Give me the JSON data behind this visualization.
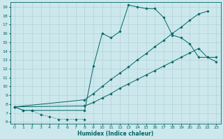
{
  "xlabel": "Humidex (Indice chaleur)",
  "xlim": [
    -0.5,
    23.5
  ],
  "ylim": [
    5.8,
    19.5
  ],
  "xticks": [
    0,
    1,
    2,
    3,
    4,
    5,
    6,
    7,
    8,
    9,
    10,
    11,
    12,
    13,
    14,
    15,
    16,
    17,
    18,
    19,
    20,
    21,
    22,
    23
  ],
  "yticks": [
    6,
    7,
    8,
    9,
    10,
    11,
    12,
    13,
    14,
    15,
    16,
    17,
    18,
    19
  ],
  "bg_color": "#cce8ec",
  "line_color": "#006666",
  "grid_color": "#aacdd2",
  "curve1": {
    "x": [
      0,
      1,
      2,
      3,
      4,
      5,
      6,
      7,
      8
    ],
    "y": [
      7.7,
      7.3,
      7.3,
      6.8,
      6.6,
      6.3,
      6.3,
      6.3,
      6.3
    ]
  },
  "curve2": {
    "x": [
      0,
      1,
      2,
      8,
      9,
      10,
      11,
      12,
      13,
      14,
      15,
      16,
      17,
      18,
      19,
      20,
      21,
      22,
      23
    ],
    "y": [
      7.7,
      7.3,
      7.3,
      7.3,
      12.3,
      16.0,
      15.5,
      16.2,
      19.2,
      19.0,
      18.8,
      18.8,
      17.8,
      15.8,
      15.5,
      14.8,
      13.3,
      13.3,
      12.8
    ]
  },
  "curve3": {
    "x": [
      0,
      8,
      9,
      10,
      11,
      12,
      13,
      14,
      15,
      16,
      17,
      18,
      19,
      20,
      21,
      22
    ],
    "y": [
      7.7,
      8.5,
      9.2,
      10.0,
      10.8,
      11.5,
      12.2,
      13.0,
      13.7,
      14.5,
      15.2,
      16.0,
      16.7,
      17.5,
      18.2,
      18.5
    ]
  },
  "curve4": {
    "x": [
      0,
      8,
      9,
      10,
      11,
      12,
      13,
      14,
      15,
      16,
      17,
      18,
      19,
      20,
      21,
      22,
      23
    ],
    "y": [
      7.7,
      7.8,
      8.2,
      8.7,
      9.2,
      9.8,
      10.3,
      10.8,
      11.3,
      11.8,
      12.3,
      12.8,
      13.3,
      13.8,
      14.3,
      13.3,
      13.3
    ]
  }
}
